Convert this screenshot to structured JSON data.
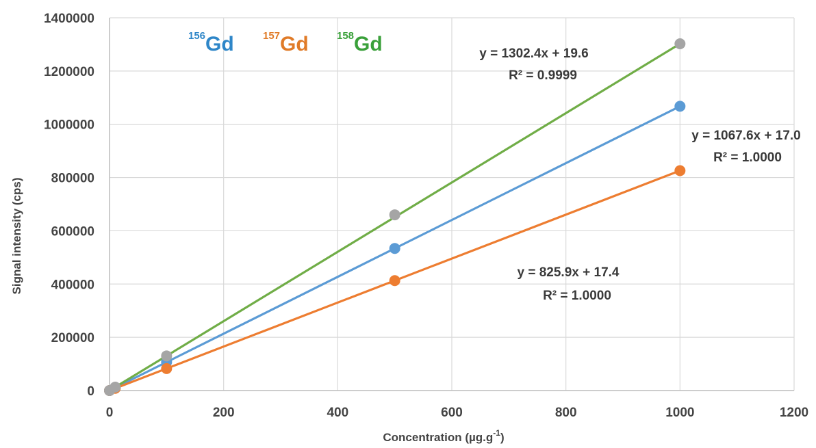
{
  "chart_data": {
    "type": "scatter",
    "xlabel": "Concentration (µg.g",
    "xlabel_sup": "-1",
    "xlabel_end": ")",
    "ylabel": "Signal intensity (cps)",
    "xlim": [
      0,
      1200
    ],
    "ylim": [
      0,
      1400000
    ],
    "x_ticks": [
      "0",
      "200",
      "400",
      "600",
      "800",
      "1000",
      "1200"
    ],
    "y_ticks": [
      "0",
      "200000",
      "400000",
      "600000",
      "800000",
      "1000000",
      "1200000",
      "1400000"
    ],
    "grid": true,
    "legend_position": "top-left",
    "series": [
      {
        "name": "Gd",
        "isotope": "156",
        "color": "#2e86c8",
        "line_color": "#5b9bd5",
        "marker_color": "#5b9bd5",
        "points": [
          [
            0,
            0
          ],
          [
            10,
            10700
          ],
          [
            100,
            106800
          ],
          [
            500,
            533800
          ],
          [
            1000,
            1067600
          ]
        ],
        "trendline": {
          "slope": 1067.6,
          "intercept": 17.0
        },
        "equation": "y = 1067.6x + 17.0",
        "r2": "R² = 1.0000"
      },
      {
        "name": "Gd",
        "isotope": "157",
        "color": "#e07b28",
        "line_color": "#ed7d31",
        "marker_color": "#ed7d31",
        "points": [
          [
            0,
            0
          ],
          [
            10,
            8300
          ],
          [
            100,
            82600
          ],
          [
            500,
            413000
          ],
          [
            1000,
            825900
          ]
        ],
        "trendline": {
          "slope": 825.9,
          "intercept": 17.4
        },
        "equation": "y = 825.9x + 17.4",
        "r2": "R² = 1.0000"
      },
      {
        "name": "Gd",
        "isotope": "158",
        "color": "#3aa03a",
        "line_color": "#70ad47",
        "marker_color": "#a5a5a5",
        "points": [
          [
            0,
            0
          ],
          [
            10,
            13000
          ],
          [
            100,
            130200
          ],
          [
            500,
            660000
          ],
          [
            1000,
            1302400
          ]
        ],
        "trendline": {
          "slope": 1302.4,
          "intercept": 19.6
        },
        "equation": "y = 1302.4x + 19.6",
        "r2": "R² = 0.9999"
      }
    ]
  }
}
